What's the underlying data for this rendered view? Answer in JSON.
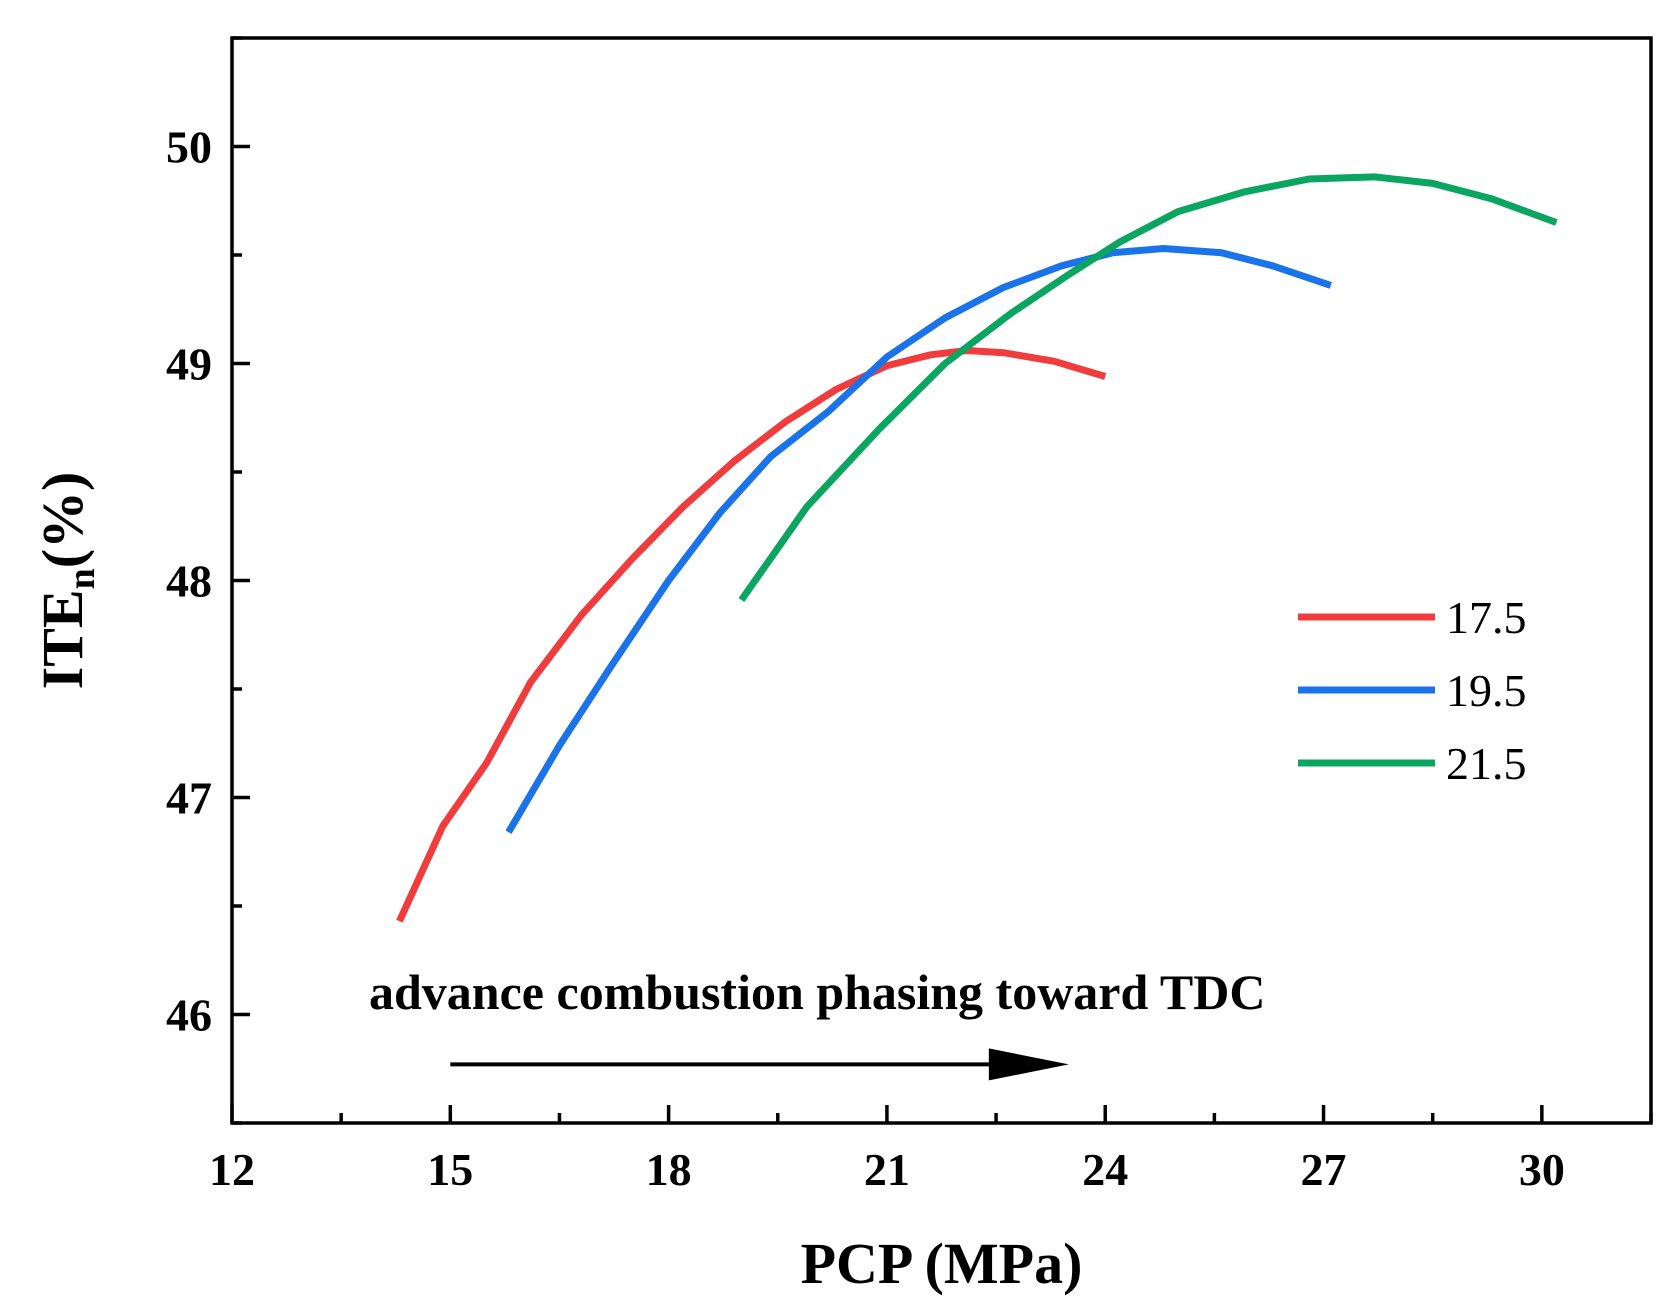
{
  "chart_data": {
    "type": "line",
    "xlabel": "PCP (MPa)",
    "ylabel": "ITE",
    "ylabel_subscript": "n",
    "ylabel_unit": "(%)",
    "xlim": [
      12,
      31.5
    ],
    "ylim": [
      45.5,
      50.5
    ],
    "xticks": [
      12,
      15,
      18,
      21,
      24,
      27,
      30
    ],
    "yticks": [
      46,
      47,
      48,
      49,
      50
    ],
    "grid": false,
    "legend_position": "right",
    "annotation": {
      "text": "advance combustion phasing toward TDC",
      "arrow_from": [
        15,
        45.77
      ],
      "arrow_to": [
        23.5,
        45.77
      ]
    },
    "series": [
      {
        "name": "17.5",
        "color": "#f03c3c",
        "x": [
          14.3,
          14.9,
          15.5,
          16.1,
          16.8,
          17.5,
          18.2,
          18.9,
          19.6,
          20.3,
          21.0,
          21.6,
          22.1,
          22.6,
          23.3,
          24.0
        ],
        "y": [
          46.43,
          46.87,
          47.16,
          47.53,
          47.84,
          48.1,
          48.34,
          48.55,
          48.73,
          48.88,
          48.99,
          49.04,
          49.06,
          49.05,
          49.01,
          48.94
        ]
      },
      {
        "name": "19.5",
        "color": "#1a73e8",
        "x": [
          15.8,
          16.5,
          17.2,
          18.0,
          18.7,
          19.4,
          20.2,
          21.0,
          21.8,
          22.6,
          23.4,
          24.1,
          24.8,
          25.6,
          26.3,
          27.1
        ],
        "y": [
          46.84,
          47.24,
          47.6,
          48.0,
          48.31,
          48.57,
          48.78,
          49.03,
          49.21,
          49.35,
          49.45,
          49.51,
          49.53,
          49.51,
          49.45,
          49.36
        ]
      },
      {
        "name": "21.5",
        "color": "#0aa560",
        "x": [
          19.0,
          19.9,
          20.9,
          21.8,
          22.7,
          23.5,
          24.2,
          25.0,
          25.9,
          26.8,
          27.7,
          28.5,
          29.3,
          30.2
        ],
        "y": [
          47.91,
          48.34,
          48.7,
          49.0,
          49.23,
          49.41,
          49.56,
          49.7,
          49.79,
          49.85,
          49.86,
          49.83,
          49.76,
          49.65
        ]
      }
    ]
  }
}
